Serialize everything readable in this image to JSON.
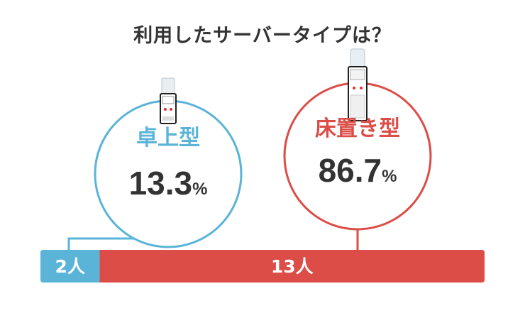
{
  "title": "利用したサーバータイプは？",
  "colors": {
    "tabletop": "#5ab4d8",
    "floor": "#dd4d47",
    "text": "#333333",
    "white": "#ffffff"
  },
  "chart_data": {
    "type": "bar",
    "title": "利用したサーバータイプは？",
    "categories": [
      "卓上型",
      "床置き型"
    ],
    "values": [
      2,
      13
    ],
    "unit": "人",
    "percentages": [
      "13.3",
      "86.7"
    ],
    "bar_labels": [
      "2人",
      "13人"
    ]
  },
  "icons": [
    "tabletop-water-server-icon",
    "floor-water-server-icon"
  ]
}
